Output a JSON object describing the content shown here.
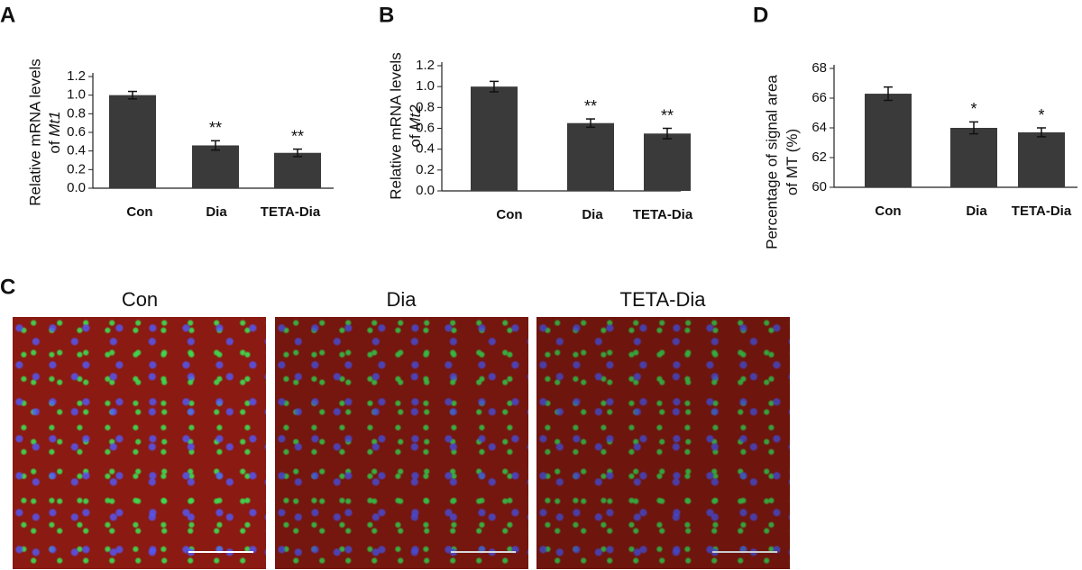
{
  "chart_data": [
    {
      "type": "bar",
      "panel_label": "A",
      "y_label": [
        "Relative mRNA levels",
        "of",
        "Mt1"
      ],
      "categories": [
        "Con",
        "Dia",
        "TETA-Dia"
      ],
      "values": [
        1.0,
        0.46,
        0.38
      ],
      "errors": [
        0.04,
        0.05,
        0.04
      ],
      "significance": [
        null,
        "**",
        "**"
      ],
      "color": "#3a3a3a",
      "ylim": [
        0,
        1.2
      ],
      "yticks": [
        {
          "value": 0,
          "label": "0.0"
        },
        0.2,
        0.4,
        0.6,
        0.8,
        {
          "value": 1,
          "label": "1.0"
        },
        1.2
      ]
    },
    {
      "type": "bar",
      "panel_label": "B",
      "y_label": [
        "Relative mRNA levels",
        "of",
        "Mt2"
      ],
      "categories": [
        "Con",
        "Dia",
        "TETA-Dia"
      ],
      "values": [
        1.0,
        0.65,
        0.55
      ],
      "errors": [
        0.05,
        0.04,
        0.05
      ],
      "significance": [
        null,
        "**",
        "**"
      ],
      "color": "#3a3a3a",
      "ylim": [
        0,
        1.2
      ],
      "yticks": [
        {
          "value": 0,
          "label": "0.0"
        },
        0.2,
        0.4,
        0.6,
        0.8,
        {
          "value": 1,
          "label": "1.0"
        },
        1.2
      ]
    },
    {
      "type": "bar",
      "panel_label": "D",
      "y_label": [
        "Percentage of signal area",
        "of MT (%)"
      ],
      "categories": [
        "Con",
        "Dia",
        "TETA-Dia"
      ],
      "values": [
        66.3,
        64.0,
        63.7
      ],
      "errors": [
        0.45,
        0.4,
        0.3
      ],
      "significance": [
        null,
        "*",
        "*"
      ],
      "color": "#3a3a3a",
      "ylim": [
        60,
        68
      ],
      "yticks": [
        60,
        62,
        64,
        66,
        68
      ]
    }
  ],
  "micrographs": {
    "panel_label": "C",
    "titles": [
      "Con",
      "Dia",
      "TETA-Dia"
    ]
  }
}
